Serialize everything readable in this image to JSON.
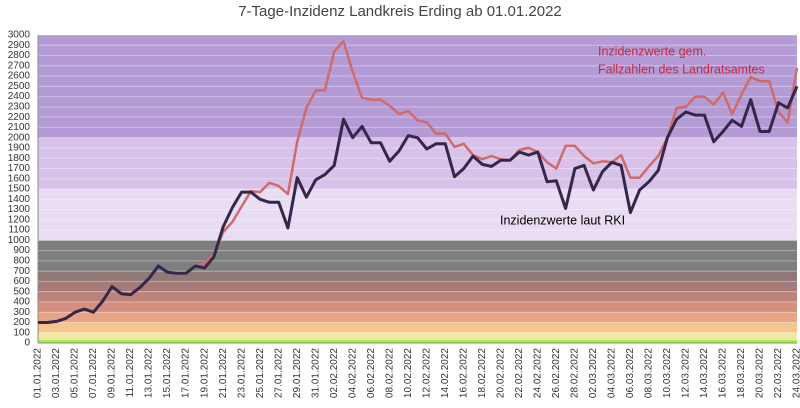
{
  "chart_data": {
    "type": "line",
    "title": "7-Tage-Inzidenz Landkreis Erding ab 01.01.2022",
    "categories": [
      "01.01.2022",
      null,
      "03.01.2022",
      null,
      "05.01.2022",
      null,
      "07.01.2022",
      null,
      "09.01.2022",
      null,
      "11.01.2022",
      null,
      "13.01.2022",
      null,
      "15.01.2022",
      null,
      "17.01.2022",
      null,
      "19.01.2022",
      null,
      "21.01.2022",
      null,
      "23.01.2022",
      null,
      "25.01.2022",
      null,
      "27.01.2022",
      null,
      "29.01.2022",
      null,
      "31.01.2022",
      null,
      "02.02.2022",
      null,
      "04.02.2022",
      null,
      "06.02.2022",
      null,
      "08.02.2022",
      null,
      "10.02.2022",
      null,
      "12.02.2022",
      null,
      "14.02.2022",
      null,
      "16.02.2022",
      null,
      "18.02.2022",
      null,
      "20.02.2022",
      null,
      "22.02.2022",
      null,
      "24.02.2022",
      null,
      "26.02.2022",
      null,
      "28.02.2022",
      null,
      "02.03.2022",
      null,
      "04.03.2022",
      null,
      "06.03.2022",
      null,
      "08.03.2022",
      null,
      "10.03.2022",
      null,
      "12.03.2022",
      null,
      "14.03.2022",
      null,
      "16.03.2022",
      null,
      "18.03.2022",
      null,
      "20.03.2022",
      null,
      "22.03.2022",
      null,
      "24.03.2022"
    ],
    "series": [
      {
        "color": "#cf6b6b",
        "values": [
          200,
          200,
          210,
          240,
          300,
          330,
          300,
          410,
          550,
          480,
          470,
          540,
          630,
          750,
          690,
          680,
          680,
          750,
          780,
          860,
          1080,
          1180,
          1330,
          1480,
          1470,
          1560,
          1530,
          1450,
          1960,
          2290,
          2460,
          2460,
          2840,
          2940,
          2640,
          2390,
          2370,
          2370,
          2310,
          2230,
          2260,
          2170,
          2150,
          2040,
          2040,
          1910,
          1940,
          1830,
          1790,
          1820,
          1790,
          1780,
          1880,
          1900,
          1860,
          1760,
          1700,
          1920,
          1920,
          1820,
          1750,
          1770,
          1760,
          1830,
          1610,
          1610,
          1720,
          1820,
          2000,
          2290,
          2300,
          2400,
          2400,
          2320,
          2440,
          2230,
          2420,
          2590,
          2550,
          2550,
          2250,
          2150,
          2680
        ]
      },
      {
        "color": "#35274a",
        "values": [
          200,
          200,
          210,
          240,
          300,
          330,
          300,
          410,
          550,
          480,
          470,
          540,
          630,
          750,
          690,
          680,
          680,
          750,
          730,
          840,
          1130,
          1320,
          1470,
          1470,
          1400,
          1370,
          1370,
          1120,
          1610,
          1420,
          1590,
          1640,
          1730,
          2180,
          2000,
          2110,
          1950,
          1950,
          1770,
          1870,
          2020,
          2000,
          1890,
          1940,
          1940,
          1620,
          1700,
          1820,
          1740,
          1720,
          1780,
          1780,
          1860,
          1830,
          1860,
          1570,
          1580,
          1310,
          1700,
          1730,
          1490,
          1670,
          1760,
          1730,
          1270,
          1490,
          1570,
          1680,
          2000,
          2180,
          2250,
          2220,
          2220,
          1960,
          2060,
          2170,
          2110,
          2370,
          2060,
          2060,
          2340,
          2290,
          2500
        ]
      }
    ],
    "annotations": [
      {
        "text": "Inzidenzwerte gem.",
        "color": "#c8283c"
      },
      {
        "text": "Fallzahlen des Landratsamtes",
        "color": "#c8283c"
      },
      {
        "text": "Inzidenzwerte laut RKI",
        "color": "#000000"
      }
    ],
    "bands": [
      {
        "from": 0,
        "to": 30,
        "color": "#a8ec4a"
      },
      {
        "from": 30,
        "to": 100,
        "color": "#f2e9a6"
      },
      {
        "from": 100,
        "to": 200,
        "color": "#f4c58e"
      },
      {
        "from": 200,
        "to": 300,
        "color": "#e7a585"
      },
      {
        "from": 300,
        "to": 400,
        "color": "#d48f7e"
      },
      {
        "from": 400,
        "to": 500,
        "color": "#bb837b"
      },
      {
        "from": 500,
        "to": 600,
        "color": "#a47b78"
      },
      {
        "from": 600,
        "to": 700,
        "color": "#8f7876"
      },
      {
        "from": 700,
        "to": 1000,
        "color": "#7e7e7e"
      },
      {
        "from": 1000,
        "to": 1500,
        "color": "#e9ddf3"
      },
      {
        "from": 1500,
        "to": 2000,
        "color": "#d8c2ea"
      },
      {
        "from": 2000,
        "to": 3000,
        "color": "#b49bd5"
      }
    ],
    "ylim": [
      0,
      3000
    ],
    "yticks": [
      0,
      100,
      200,
      300,
      400,
      500,
      600,
      700,
      800,
      900,
      1000,
      1100,
      1200,
      1300,
      1400,
      1500,
      1600,
      1700,
      1800,
      1900,
      2000,
      2100,
      2200,
      2300,
      2400,
      2500,
      2600,
      2700,
      2800,
      2900,
      3000
    ],
    "grid": true
  }
}
